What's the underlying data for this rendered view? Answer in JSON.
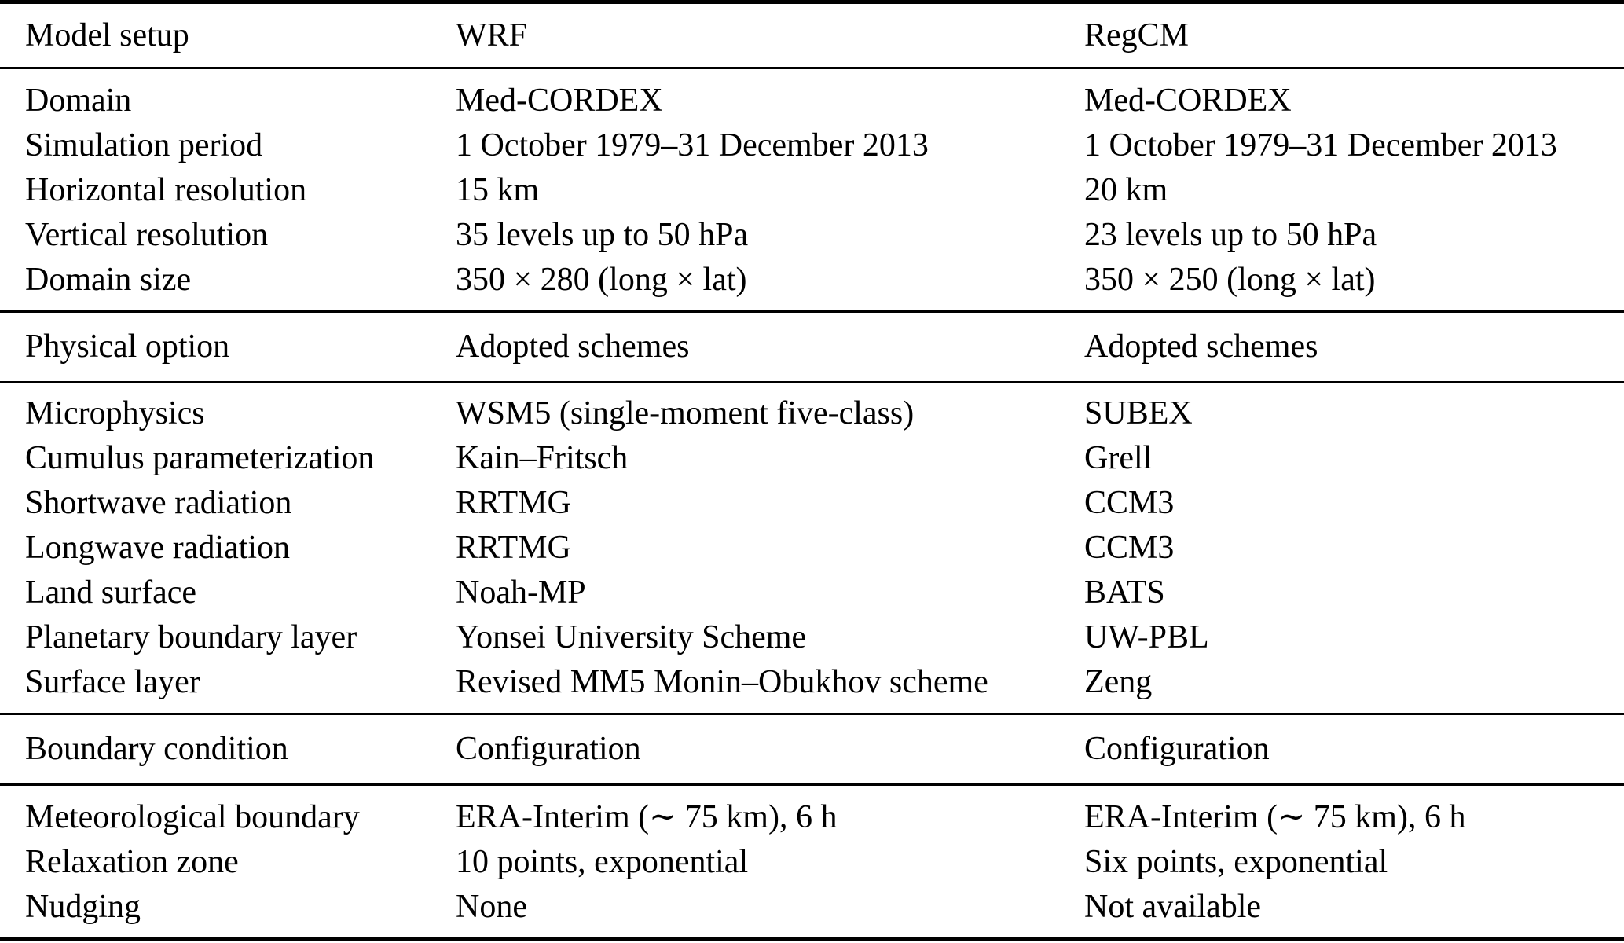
{
  "table": {
    "columns": [
      "Model setup",
      "WRF",
      "RegCM"
    ],
    "sections": [
      {
        "rows": [
          [
            "Domain",
            "Med-CORDEX",
            "Med-CORDEX"
          ],
          [
            "Simulation period",
            "1 October 1979–31 December 2013",
            "1 October 1979–31 December 2013"
          ],
          [
            "Horizontal resolution",
            "15 km",
            "20 km"
          ],
          [
            "Vertical resolution",
            "35 levels up to 50 hPa",
            "23 levels up to 50 hPa"
          ],
          [
            "Domain size",
            "350 × 280 (long × lat)",
            "350 × 250 (long × lat)"
          ]
        ]
      },
      {
        "header": [
          "Physical option",
          "Adopted schemes",
          "Adopted schemes"
        ],
        "rows": [
          [
            "Microphysics",
            "WSM5 (single-moment five-class)",
            "SUBEX"
          ],
          [
            "Cumulus parameterization",
            "Kain–Fritsch",
            "Grell"
          ],
          [
            "Shortwave radiation",
            "RRTMG",
            "CCM3"
          ],
          [
            "Longwave radiation",
            "RRTMG",
            "CCM3"
          ],
          [
            "Land surface",
            "Noah-MP",
            "BATS"
          ],
          [
            "Planetary boundary layer",
            "Yonsei University Scheme",
            "UW-PBL"
          ],
          [
            "Surface layer",
            "Revised MM5 Monin–Obukhov scheme",
            "Zeng"
          ]
        ]
      },
      {
        "header": [
          "Boundary condition",
          "Configuration",
          "Configuration"
        ],
        "rows": [
          [
            "Meteorological boundary",
            "ERA-Interim (∼ 75 km), 6 h",
            "ERA-Interim (∼ 75 km), 6 h"
          ],
          [
            "Relaxation zone",
            "10 points, exponential",
            "Six points, exponential"
          ],
          [
            "Nudging",
            "None",
            "Not available"
          ]
        ]
      }
    ],
    "colors": {
      "text": "#000000",
      "background": "#ffffff",
      "rule": "#000000"
    }
  }
}
